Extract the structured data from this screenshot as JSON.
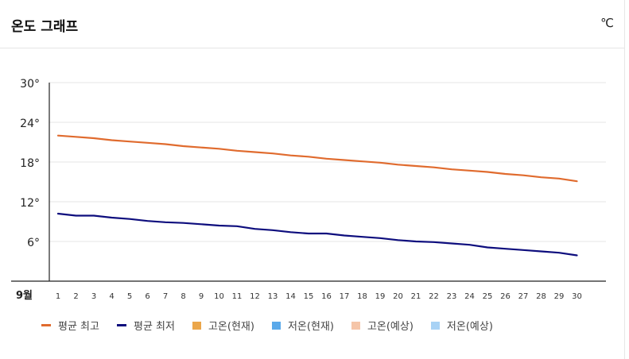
{
  "header": {
    "title": "온도 그래프",
    "unit": "℃"
  },
  "chart_data": {
    "type": "line",
    "title": "온도 그래프",
    "month_label": "9월",
    "x": [
      1,
      2,
      3,
      4,
      5,
      6,
      7,
      8,
      9,
      10,
      11,
      12,
      13,
      14,
      15,
      16,
      17,
      18,
      19,
      20,
      21,
      22,
      23,
      24,
      25,
      26,
      27,
      28,
      29,
      30
    ],
    "ylim": [
      6,
      30
    ],
    "yticks": [
      30,
      24,
      18,
      12,
      6
    ],
    "ytick_labels": [
      "30°",
      "24°",
      "18°",
      "12°",
      "6°"
    ],
    "grid": true,
    "legend_position": "bottom",
    "series": [
      {
        "name": "평균 최고",
        "color": "#e06b2e",
        "values": [
          22.0,
          21.8,
          21.6,
          21.3,
          21.1,
          20.9,
          20.7,
          20.4,
          20.2,
          20.0,
          19.7,
          19.5,
          19.3,
          19.0,
          18.8,
          18.5,
          18.3,
          18.1,
          17.9,
          17.6,
          17.4,
          17.2,
          16.9,
          16.7,
          16.5,
          16.2,
          16.0,
          15.7,
          15.5,
          15.1
        ]
      },
      {
        "name": "평균 최저",
        "color": "#0d0d7d",
        "values": [
          10.2,
          9.9,
          9.9,
          9.6,
          9.4,
          9.1,
          8.9,
          8.8,
          8.6,
          8.4,
          8.3,
          7.9,
          7.7,
          7.4,
          7.2,
          7.2,
          6.9,
          6.7,
          6.5,
          6.2,
          6.0,
          5.9,
          5.7,
          5.5,
          5.1,
          4.9,
          4.7,
          4.5,
          4.3,
          3.9
        ]
      }
    ],
    "legend": [
      {
        "label": "평균 최고",
        "color": "#e06b2e",
        "style": "line"
      },
      {
        "label": "평균 최저",
        "color": "#0d0d7d",
        "style": "line"
      },
      {
        "label": "고온(현재)",
        "color": "#eba64a",
        "style": "box"
      },
      {
        "label": "저온(현재)",
        "color": "#5aa9ea",
        "style": "box"
      },
      {
        "label": "고온(예상)",
        "color": "#f5c5a8",
        "style": "box"
      },
      {
        "label": "저온(예상)",
        "color": "#a8d2f5",
        "style": "box"
      }
    ]
  }
}
